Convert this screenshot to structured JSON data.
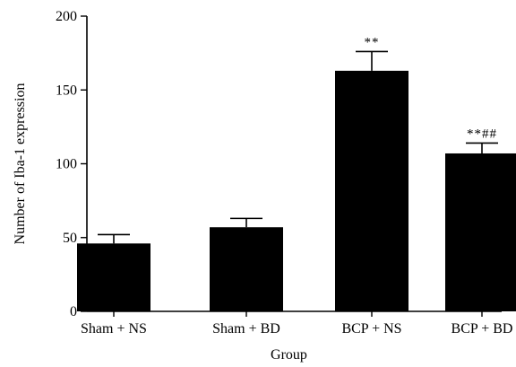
{
  "chart_data": {
    "type": "bar",
    "title": "",
    "xlabel": "Group",
    "ylabel": "Number of Iba-1 expression",
    "categories": [
      "Sham + NS",
      "Sham + BD",
      "BCP + NS",
      "BCP + BD"
    ],
    "values": [
      46,
      57,
      163,
      107
    ],
    "errors": [
      6,
      6,
      13,
      7
    ],
    "annotations": [
      "",
      "",
      "**",
      "**##"
    ],
    "ylim": [
      0,
      200
    ],
    "yticks": [
      "0",
      "50",
      "100",
      "150",
      "200"
    ],
    "grid": false,
    "legend": "none",
    "bar_color": "#000000"
  }
}
